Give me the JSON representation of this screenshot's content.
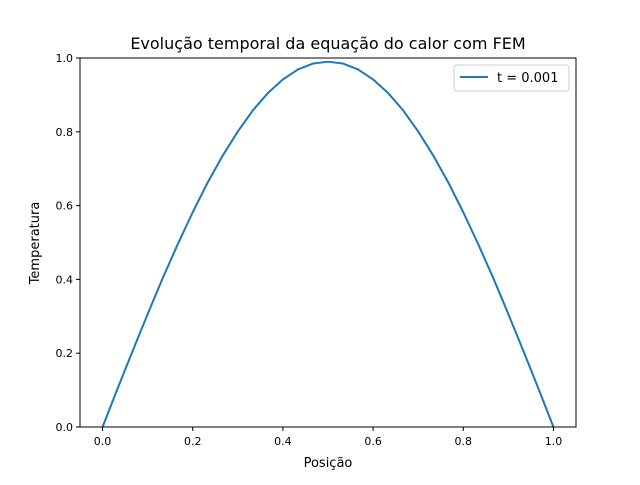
{
  "chart_data": {
    "type": "line",
    "title": "Evolução temporal da equação do calor com FEM",
    "xlabel": "Posição",
    "ylabel": "Temperatura",
    "xlim": [
      -0.05,
      1.05
    ],
    "ylim": [
      0,
      1.0
    ],
    "xticks": [
      "0.0",
      "0.2",
      "0.4",
      "0.6",
      "0.8",
      "1.0"
    ],
    "yticks": [
      "0.0",
      "0.2",
      "0.4",
      "0.6",
      "0.8",
      "1.0"
    ],
    "grid": false,
    "legend_position": "top-right",
    "series": [
      {
        "name": "t = 0.001",
        "color": "#1f77b4",
        "x": [
          0,
          0.0333,
          0.0667,
          0.1,
          0.1333,
          0.1667,
          0.2,
          0.2333,
          0.2667,
          0.3,
          0.3333,
          0.3667,
          0.4,
          0.4333,
          0.4667,
          0.5,
          0.5333,
          0.5667,
          0.6,
          0.6333,
          0.6667,
          0.7,
          0.7333,
          0.7667,
          0.8,
          0.8333,
          0.8667,
          0.9,
          0.9333,
          0.9667,
          1.0
        ],
        "y": [
          0,
          0.104,
          0.206,
          0.306,
          0.403,
          0.495,
          0.582,
          0.663,
          0.736,
          0.801,
          0.858,
          0.905,
          0.942,
          0.969,
          0.985,
          0.99,
          0.985,
          0.969,
          0.942,
          0.905,
          0.858,
          0.801,
          0.736,
          0.663,
          0.582,
          0.495,
          0.403,
          0.306,
          0.206,
          0.104,
          0
        ]
      }
    ]
  }
}
